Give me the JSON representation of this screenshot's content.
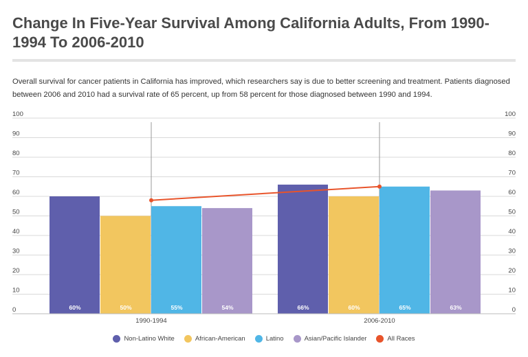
{
  "title": "Change In Five-Year Survival Among California Adults, From 1990-1994 To 2006-2010",
  "subtitle": "Overall survival for cancer patients in California has improved, which researchers say is due to better screening and treatment. Patients diagnosed between 2006 and 2010 had a survival rate of 65 percent, up from 58 percent for those diagnosed between 1990 and 1994.",
  "chart_data": {
    "type": "bar",
    "categories": [
      "1990-1994",
      "2006-2010"
    ],
    "series": [
      {
        "name": "Non-Latino White",
        "values": [
          60,
          66
        ],
        "labels": [
          "60%",
          "66%"
        ],
        "color": "#5f5fac"
      },
      {
        "name": "African-American",
        "values": [
          50,
          60
        ],
        "labels": [
          "50%",
          "60%"
        ],
        "color": "#f2c65f"
      },
      {
        "name": "Latino",
        "values": [
          55,
          65
        ],
        "labels": [
          "55%",
          "65%"
        ],
        "color": "#50b6e6"
      },
      {
        "name": "Asian/Pacific Islander",
        "values": [
          54,
          63
        ],
        "labels": [
          "54%",
          "63%"
        ],
        "color": "#a897c9"
      }
    ],
    "line_series": {
      "name": "All Races",
      "type": "line",
      "values": [
        58,
        65
      ],
      "color": "#e8542b"
    },
    "ylim": [
      0,
      100
    ],
    "yticks": [
      0,
      10,
      20,
      30,
      40,
      50,
      60,
      70,
      80,
      90,
      100
    ],
    "xlabel": "",
    "ylabel": "",
    "grid": true,
    "legend_position": "bottom"
  }
}
